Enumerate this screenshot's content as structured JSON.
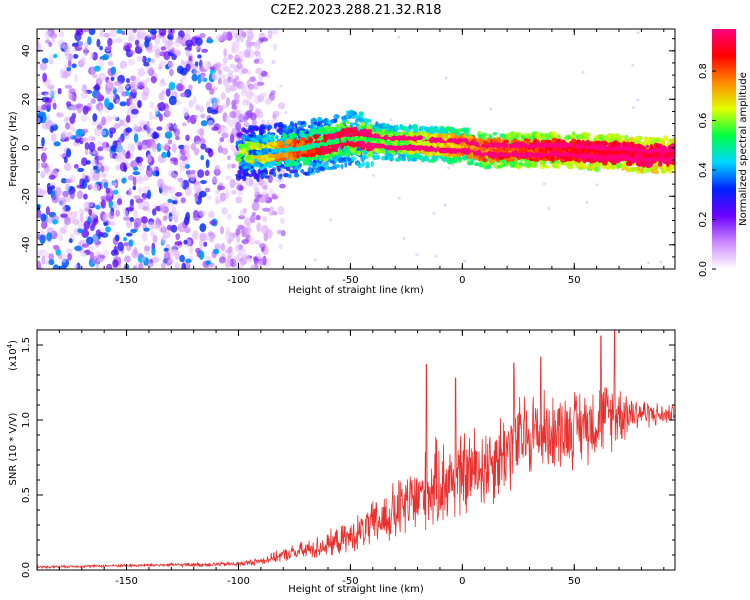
{
  "chart_data": [
    {
      "type": "heatmap",
      "title": "C2E2.2023.288.21.32.R18",
      "xlabel": "Height of straight line (km)",
      "ylabel": "Frequency (Hz)",
      "xlim": [
        -190,
        95
      ],
      "ylim": [
        -50,
        49
      ],
      "xticks": [
        -150,
        -100,
        -50,
        0,
        50
      ],
      "yticks": [
        -40,
        -20,
        0,
        20,
        40
      ],
      "colorbar": {
        "label": "Normalized spectral amplitude",
        "range": [
          0.0,
          0.97
        ],
        "ticks": [
          0.0,
          0.2,
          0.4,
          0.6,
          0.8
        ],
        "colormap": [
          "#ffffff",
          "#cc88ff",
          "#6a00ff",
          "#0022ff",
          "#00d8ff",
          "#00ff44",
          "#e0ff00",
          "#ff8800",
          "#ff0000",
          "#ff007f"
        ]
      },
      "description_points": {
        "noise_region_x": [
          -190,
          -90
        ],
        "ridge": {
          "x": [
            -100,
            -90,
            -80,
            -70,
            -60,
            -50,
            -40,
            -30,
            -20,
            -10,
            0,
            10,
            20,
            30,
            40,
            50,
            60,
            70,
            80,
            90,
            95
          ],
          "freq": [
            -2,
            -2,
            -1,
            0,
            2,
            4,
            3,
            2,
            2,
            1,
            1,
            -1,
            -1,
            -1,
            -1,
            -1,
            -2,
            -2,
            -3,
            -3,
            -3
          ],
          "amplitude": [
            0.3,
            0.35,
            0.4,
            0.45,
            0.5,
            0.5,
            0.55,
            0.55,
            0.6,
            0.65,
            0.7,
            0.75,
            0.78,
            0.8,
            0.82,
            0.84,
            0.86,
            0.88,
            0.9,
            0.9,
            0.9
          ]
        }
      }
    },
    {
      "type": "line",
      "xlabel": "Height of straight line (km)",
      "ylabel": "SNR (10 * V/V)",
      "yscale_label": "(x10",
      "yscale_exp": "4",
      "xlim": [
        -190,
        95
      ],
      "ylim": [
        0.0,
        1.6
      ],
      "xticks": [
        -150,
        -100,
        -50,
        0,
        50
      ],
      "yticks": [
        "0.0",
        "0.5",
        "1.0",
        "1.5"
      ],
      "ytick_values": [
        0.0,
        0.5,
        1.0,
        1.5
      ],
      "color": "#e8312f",
      "envelope": {
        "x": [
          -190,
          -150,
          -100,
          -90,
          -80,
          -70,
          -60,
          -50,
          -40,
          -30,
          -20,
          -10,
          0,
          10,
          20,
          30,
          40,
          50,
          60,
          70,
          80,
          90,
          95
        ],
        "y": [
          0.02,
          0.03,
          0.04,
          0.06,
          0.1,
          0.13,
          0.17,
          0.22,
          0.3,
          0.38,
          0.48,
          0.58,
          0.62,
          0.7,
          0.8,
          0.92,
          0.92,
          0.95,
          1.0,
          1.05,
          1.05,
          1.03,
          1.05
        ],
        "spread": [
          0.01,
          0.01,
          0.02,
          0.03,
          0.05,
          0.08,
          0.1,
          0.12,
          0.18,
          0.25,
          0.3,
          0.35,
          0.35,
          0.35,
          0.35,
          0.35,
          0.3,
          0.3,
          0.3,
          0.25,
          0.12,
          0.08,
          0.06
        ]
      },
      "peaks": [
        {
          "x": -16,
          "y": 1.37
        },
        {
          "x": -3,
          "y": 1.28
        },
        {
          "x": 23,
          "y": 1.38
        },
        {
          "x": 35,
          "y": 1.42
        },
        {
          "x": 62,
          "y": 1.56
        },
        {
          "x": 68,
          "y": 1.6
        }
      ]
    }
  ]
}
